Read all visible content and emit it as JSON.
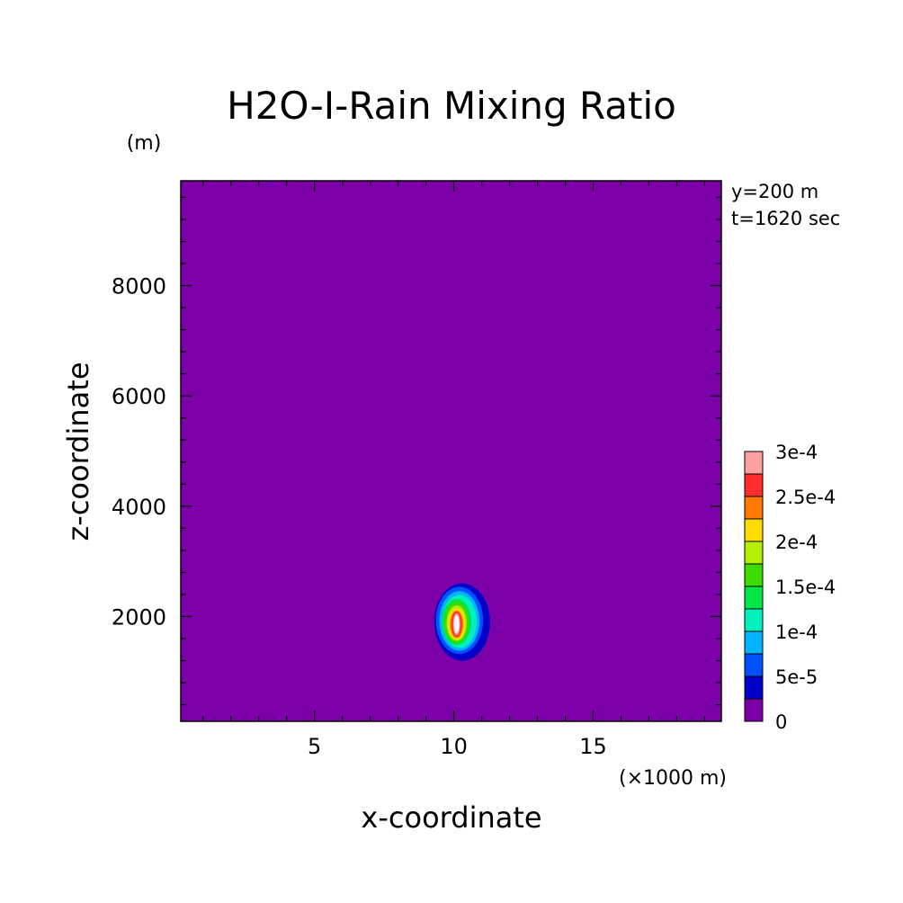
{
  "chart_data": {
    "type": "heatmap",
    "title": "H2O-I-Rain Mixing Ratio",
    "xlabel": "x-coordinate",
    "ylabel": "z-coordinate",
    "x_unit": "(×1000 m)",
    "y_unit": "(m)",
    "annotations": [
      "y=200 m",
      "t=1620 sec"
    ],
    "xlim": [
      0.2,
      19.6
    ],
    "ylim": [
      100,
      9900
    ],
    "x_ticks": [
      5,
      10,
      15
    ],
    "y_ticks": [
      2000,
      4000,
      6000,
      8000
    ],
    "x_minor_step": 1,
    "y_minor_step": 400,
    "background_color": "#7b00a8",
    "levels": [
      {
        "value": 0,
        "color": "#7b00a8"
      },
      {
        "value": 2.5e-05,
        "color": "#0000c8"
      },
      {
        "value": 5e-05,
        "color": "#0050ff"
      },
      {
        "value": 7.5e-05,
        "color": "#00b4ff"
      },
      {
        "value": 0.0001,
        "color": "#00f0c0"
      },
      {
        "value": 0.000125,
        "color": "#00e646"
      },
      {
        "value": 0.00015,
        "color": "#3cdc00"
      },
      {
        "value": 0.000175,
        "color": "#b4f000"
      },
      {
        "value": 0.0002,
        "color": "#ffdc00"
      },
      {
        "value": 0.000225,
        "color": "#ff7800"
      },
      {
        "value": 0.00025,
        "color": "#ff2d2d"
      },
      {
        "value": 0.000275,
        "color": "#ffa0a0"
      }
    ],
    "colorbar_labels": [
      "0",
      "5e-5",
      "1e-4",
      "1.5e-4",
      "2e-4",
      "2.5e-4",
      "3e-4"
    ],
    "colorbar_label_values": [
      0,
      5e-05,
      0.0001,
      0.00015,
      0.0002,
      0.00025,
      0.0003
    ],
    "colorbar_max": 0.0003,
    "contours": [
      {
        "level_index": 1,
        "cx": 10.3,
        "cz": 1900,
        "rx": 1.0,
        "rz": 700
      },
      {
        "level_index": 2,
        "cx": 10.2,
        "cz": 1930,
        "rx": 0.85,
        "rz": 610
      },
      {
        "level_index": 3,
        "cx": 10.2,
        "cz": 1920,
        "rx": 0.72,
        "rz": 540
      },
      {
        "level_index": 4,
        "cx": 10.2,
        "cz": 1910,
        "rx": 0.62,
        "rz": 480
      },
      {
        "level_index": 5,
        "cx": 10.1,
        "cz": 1900,
        "rx": 0.52,
        "rz": 420
      },
      {
        "level_index": 6,
        "cx": 10.1,
        "cz": 1890,
        "rx": 0.44,
        "rz": 370
      },
      {
        "level_index": 7,
        "cx": 10.1,
        "cz": 1880,
        "rx": 0.36,
        "rz": 320
      },
      {
        "level_index": 8,
        "cx": 10.1,
        "cz": 1870,
        "rx": 0.3,
        "rz": 280
      },
      {
        "level_index": 9,
        "cx": 10.1,
        "cz": 1860,
        "rx": 0.24,
        "rz": 250
      },
      {
        "level_index": 10,
        "cx": 10.1,
        "cz": 1860,
        "rx": 0.19,
        "rz": 230
      },
      {
        "level_index": 11,
        "cx": 10.1,
        "cz": 1860,
        "rx": 0.13,
        "rz": 200
      }
    ],
    "core_color": "#ffffff",
    "core": {
      "cx": 10.1,
      "cz": 1860,
      "rx": 0.09,
      "rz": 160
    }
  }
}
